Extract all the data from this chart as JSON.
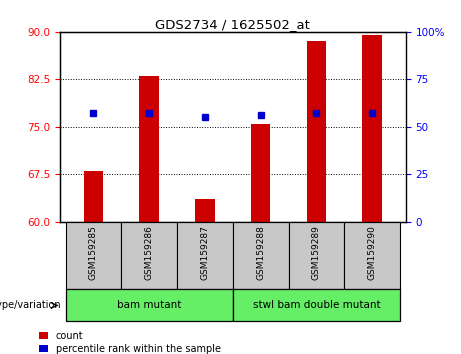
{
  "title": "GDS2734 / 1625502_at",
  "samples": [
    "GSM159285",
    "GSM159286",
    "GSM159287",
    "GSM159288",
    "GSM159289",
    "GSM159290"
  ],
  "count_values": [
    68.0,
    83.0,
    63.5,
    75.5,
    88.5,
    89.5
  ],
  "percentile_values": [
    57,
    57,
    55,
    56,
    57,
    57
  ],
  "ylim_left": [
    60,
    90
  ],
  "ylim_right": [
    0,
    100
  ],
  "yticks_left": [
    60,
    67.5,
    75,
    82.5,
    90
  ],
  "yticks_right": [
    0,
    25,
    50,
    75,
    100
  ],
  "groups": [
    {
      "label": "bam mutant",
      "indices": [
        0,
        1,
        2
      ],
      "color": "#66EE66"
    },
    {
      "label": "stwl bam double mutant",
      "indices": [
        3,
        4,
        5
      ],
      "color": "#66EE66"
    }
  ],
  "bar_color": "#CC0000",
  "dot_color": "#0000CC",
  "group_label_prefix": "genotype/variation",
  "legend_count_label": "count",
  "legend_percentile_label": "percentile rank within the sample",
  "bar_width": 0.35,
  "bar_bottom": 60,
  "xtick_bg_color": "#C8C8C8"
}
